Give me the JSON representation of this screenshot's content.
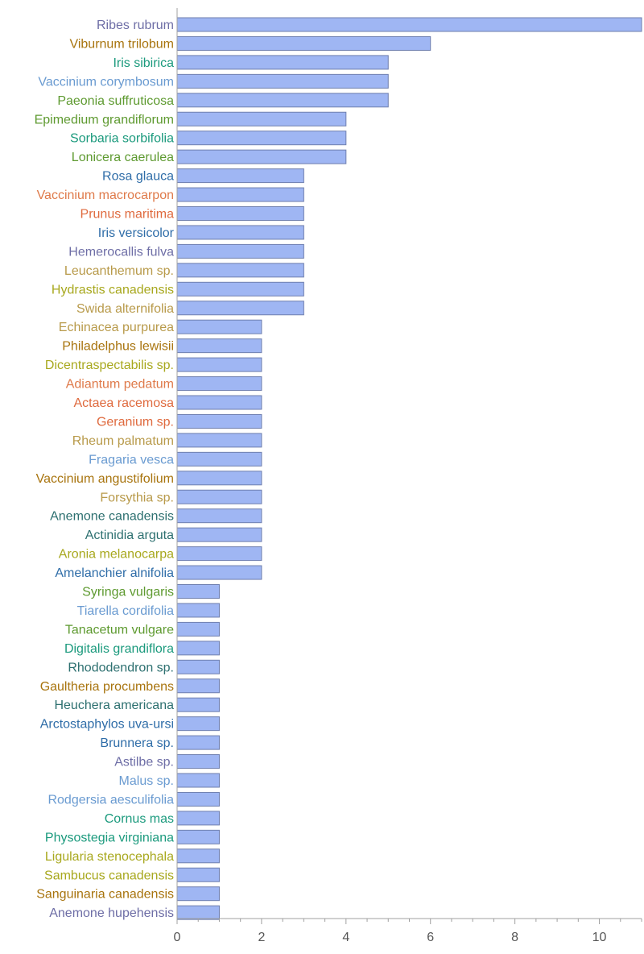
{
  "chart_data": {
    "type": "bar",
    "orientation": "horizontal",
    "categories": [
      "Ribes rubrum",
      "Viburnum trilobum",
      "Iris sibirica",
      "Vaccinium corymbosum",
      "Paeonia suffruticosa",
      "Epimedium grandiflorum",
      "Sorbaria sorbifolia",
      "Lonicera caerulea",
      "Rosa glauca",
      "Vaccinium macrocarpon",
      "Prunus maritima",
      "Iris versicolor",
      "Hemerocallis fulva",
      "Leucanthemum sp.",
      "Hydrastis canadensis",
      "Swida alternifolia",
      "Echinacea purpurea",
      "Philadelphus lewisii",
      "Dicentraspectabilis sp.",
      "Adiantum pedatum",
      "Actaea racemosa",
      "Geranium sp.",
      "Rheum palmatum",
      "Fragaria vesca",
      "Vaccinium angustifolium",
      "Forsythia sp.",
      "Anemone canadensis",
      "Actinidia arguta",
      "Aronia melanocarpa",
      "Amelanchier alnifolia",
      "Syringa vulgaris",
      "Tiarella cordifolia",
      "Tanacetum vulgare",
      "Digitalis grandiflora",
      "Rhododendron sp.",
      "Gaultheria procumbens",
      "Heuchera americana",
      "Arctostaphylos uva-ursi",
      "Brunnera sp.",
      "Astilbe sp.",
      "Malus sp.",
      "Rodgersia aesculifolia",
      "Cornus mas",
      "Physostegia virginiana",
      "Ligularia stenocephala",
      "Sambucus canadensis",
      "Sanguinaria canadensis",
      "Anemone hupehensis"
    ],
    "values": [
      11,
      6,
      5,
      5,
      5,
      4,
      4,
      4,
      3,
      3,
      3,
      3,
      3,
      3,
      3,
      3,
      2,
      2,
      2,
      2,
      2,
      2,
      2,
      2,
      2,
      2,
      2,
      2,
      2,
      2,
      1,
      1,
      1,
      1,
      1,
      1,
      1,
      1,
      1,
      1,
      1,
      1,
      1,
      1,
      1,
      1,
      1,
      1
    ],
    "label_colors": [
      "#6e6ea6",
      "#a8740e",
      "#1b9a7d",
      "#6a9bd1",
      "#5e9a30",
      "#5e9a30",
      "#1b9a7d",
      "#5e9a30",
      "#2f6da8",
      "#df7a4a",
      "#df6a3e",
      "#2f6da8",
      "#6e6ea6",
      "#b89a4a",
      "#a8a81e",
      "#b89a4a",
      "#b89a4a",
      "#a8740e",
      "#a8a81e",
      "#df7a4a",
      "#df6a3e",
      "#df6a3e",
      "#b89a4a",
      "#6a9bd1",
      "#a8740e",
      "#b89a4a",
      "#2d7070",
      "#2d7070",
      "#a8a81e",
      "#2f6da8",
      "#5e9a30",
      "#6a9bd1",
      "#5e9a30",
      "#1b9a7d",
      "#2d7070",
      "#a8740e",
      "#2d7070",
      "#2f6da8",
      "#2f6da8",
      "#6e6ea6",
      "#6a9bd1",
      "#6a9bd1",
      "#1b9a7d",
      "#1b9a7d",
      "#a8a81e",
      "#a8a81e",
      "#a8740e",
      "#6e6ea6"
    ],
    "xlim": [
      0,
      11
    ],
    "xticks": [
      0,
      2,
      4,
      6,
      8,
      10
    ],
    "title": "",
    "xlabel": "",
    "ylabel": "",
    "bar_fill": "#9fb6f3",
    "bar_stroke": "#6f7fae",
    "axis_color": "#a0a0a0",
    "grid": false
  }
}
